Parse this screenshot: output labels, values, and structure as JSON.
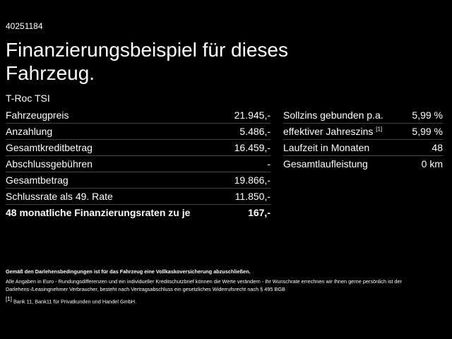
{
  "id": "40251184",
  "title": "Finanzierungsbeispiel für dieses Fahrzeug.",
  "model": "T-Roc TSI",
  "left_table": {
    "rows": [
      [
        "Fahrzeugpreis",
        "21.945,-"
      ],
      [
        "Anzahlung",
        "5.486,-"
      ],
      [
        "Gesamtkreditbetrag",
        "16.459,-"
      ],
      [
        "Abschlussgebühren",
        "-"
      ],
      [
        "Gesamtbetrag",
        "19.866,-"
      ],
      [
        "Schlussrate als 49. Rate",
        "11.850,-"
      ],
      [
        "48 monatliche Finanzierungsraten zu je",
        "167,-"
      ]
    ]
  },
  "right_table": {
    "rows": [
      [
        "Sollzins gebunden p.a.",
        "5,99 %"
      ],
      [
        "effektiver Jahreszins",
        "5,99 %"
      ],
      [
        "Laufzeit in Monaten",
        "48"
      ],
      [
        "Gesamtlaufleistung",
        "0 km"
      ]
    ],
    "footnote_ref": "[1]"
  },
  "notes": {
    "insurance": "Gemäß den Darlehensbedingungen ist für das Fahrzeug eine Vollkaskoversicherung abzuschließen.",
    "disclaimer": "Alle Angaben in Euro - Rundungsdifferenzen und ein individueller Kreditschutzbrief können die Werte verändern - Ihr Wunschrate errechnen wir Ihnen gerne persönlich ist der Darlehens-/Leasingnehmer Verbraucher, besteht nach Vertragsabschluss ein gesetzliches Widerrufsrecht nach § 495 BGB",
    "footnote_mark": "[1]",
    "footnote": "Bank 11, Bank11 für Privatkunden und Handel GmbH."
  }
}
